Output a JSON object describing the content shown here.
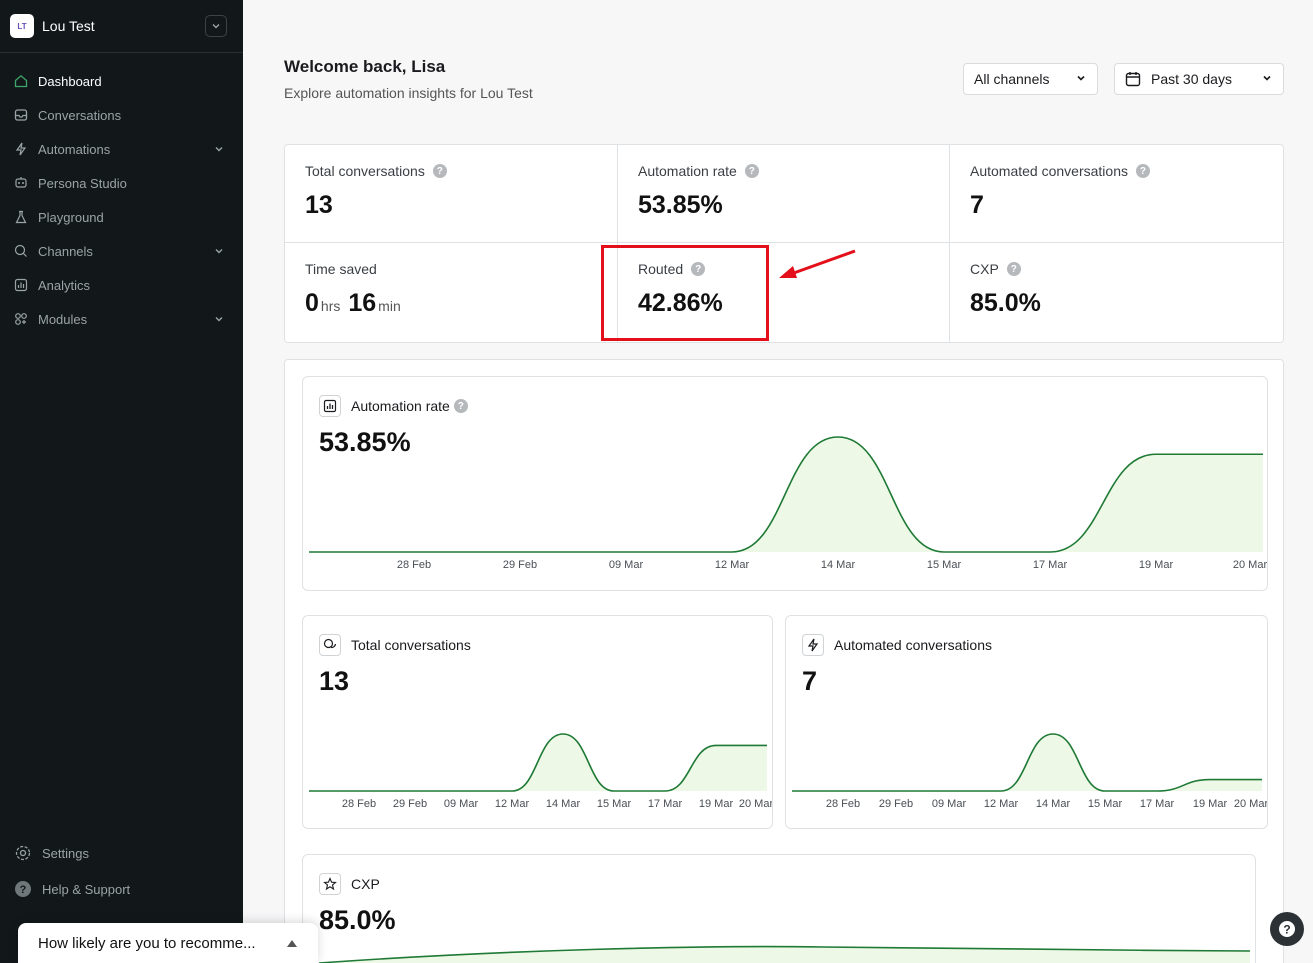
{
  "workspace": {
    "initials": "LT",
    "name": "Lou Test"
  },
  "nav": [
    {
      "label": "Dashboard",
      "icon": "home-icon",
      "active": true
    },
    {
      "label": "Conversations",
      "icon": "inbox-icon"
    },
    {
      "label": "Automations",
      "icon": "bolt-icon",
      "expandable": true
    },
    {
      "label": "Persona Studio",
      "icon": "persona-icon"
    },
    {
      "label": "Playground",
      "icon": "flask-icon"
    },
    {
      "label": "Channels",
      "icon": "chat-icon",
      "expandable": true
    },
    {
      "label": "Analytics",
      "icon": "chart-icon"
    },
    {
      "label": "Modules",
      "icon": "modules-icon",
      "expandable": true
    }
  ],
  "sidebar_bottom": {
    "settings": "Settings",
    "help": "Help & Support"
  },
  "survey": {
    "text": "How likely are you to recomme..."
  },
  "header": {
    "title": "Welcome back, Lisa",
    "subtitle": "Explore automation insights for Lou Test",
    "channel_filter": "All channels",
    "period_filter": "Past 30 days"
  },
  "stats": {
    "total_conversations": {
      "label": "Total conversations",
      "value": "13"
    },
    "automation_rate": {
      "label": "Automation rate",
      "value": "53.85%"
    },
    "automated_conversations": {
      "label": "Automated conversations",
      "value": "7"
    },
    "time_saved": {
      "label": "Time saved",
      "hours": "0",
      "hours_unit": "hrs",
      "minutes": "16",
      "minutes_unit": "min"
    },
    "routed": {
      "label": "Routed",
      "value": "42.86%"
    },
    "cxp": {
      "label": "CXP",
      "value": "85.0%"
    }
  },
  "colors": {
    "line": "#1e7a35",
    "fill": "#eef8e6",
    "highlight": "#e3101b"
  },
  "chart_data": [
    {
      "type": "area",
      "title": "Automation rate",
      "headline": "53.85%",
      "x": [
        "28 Feb",
        "29 Feb",
        "09 Mar",
        "12 Mar",
        "14 Mar",
        "15 Mar",
        "17 Mar",
        "19 Mar",
        "20 Mar"
      ],
      "series": [
        {
          "values": [
            0,
            0,
            0,
            0,
            100,
            0,
            0,
            85,
            85
          ]
        }
      ]
    },
    {
      "type": "area",
      "title": "Total conversations",
      "headline": "13",
      "x": [
        "28 Feb",
        "29 Feb",
        "09 Mar",
        "12 Mar",
        "14 Mar",
        "15 Mar",
        "17 Mar",
        "19 Mar",
        "20 Mar"
      ],
      "series": [
        {
          "values": [
            0,
            0,
            0,
            0,
            1,
            0,
            0,
            0.8,
            0.8
          ]
        }
      ]
    },
    {
      "type": "area",
      "title": "Automated conversations",
      "headline": "7",
      "x": [
        "28 Feb",
        "29 Feb",
        "09 Mar",
        "12 Mar",
        "14 Mar",
        "15 Mar",
        "17 Mar",
        "19 Mar",
        "20 Mar"
      ],
      "series": [
        {
          "values": [
            0,
            0,
            0,
            0,
            1,
            0,
            0,
            0.2,
            0.2
          ]
        }
      ]
    },
    {
      "type": "area",
      "title": "CXP",
      "headline": "85.0%"
    }
  ]
}
